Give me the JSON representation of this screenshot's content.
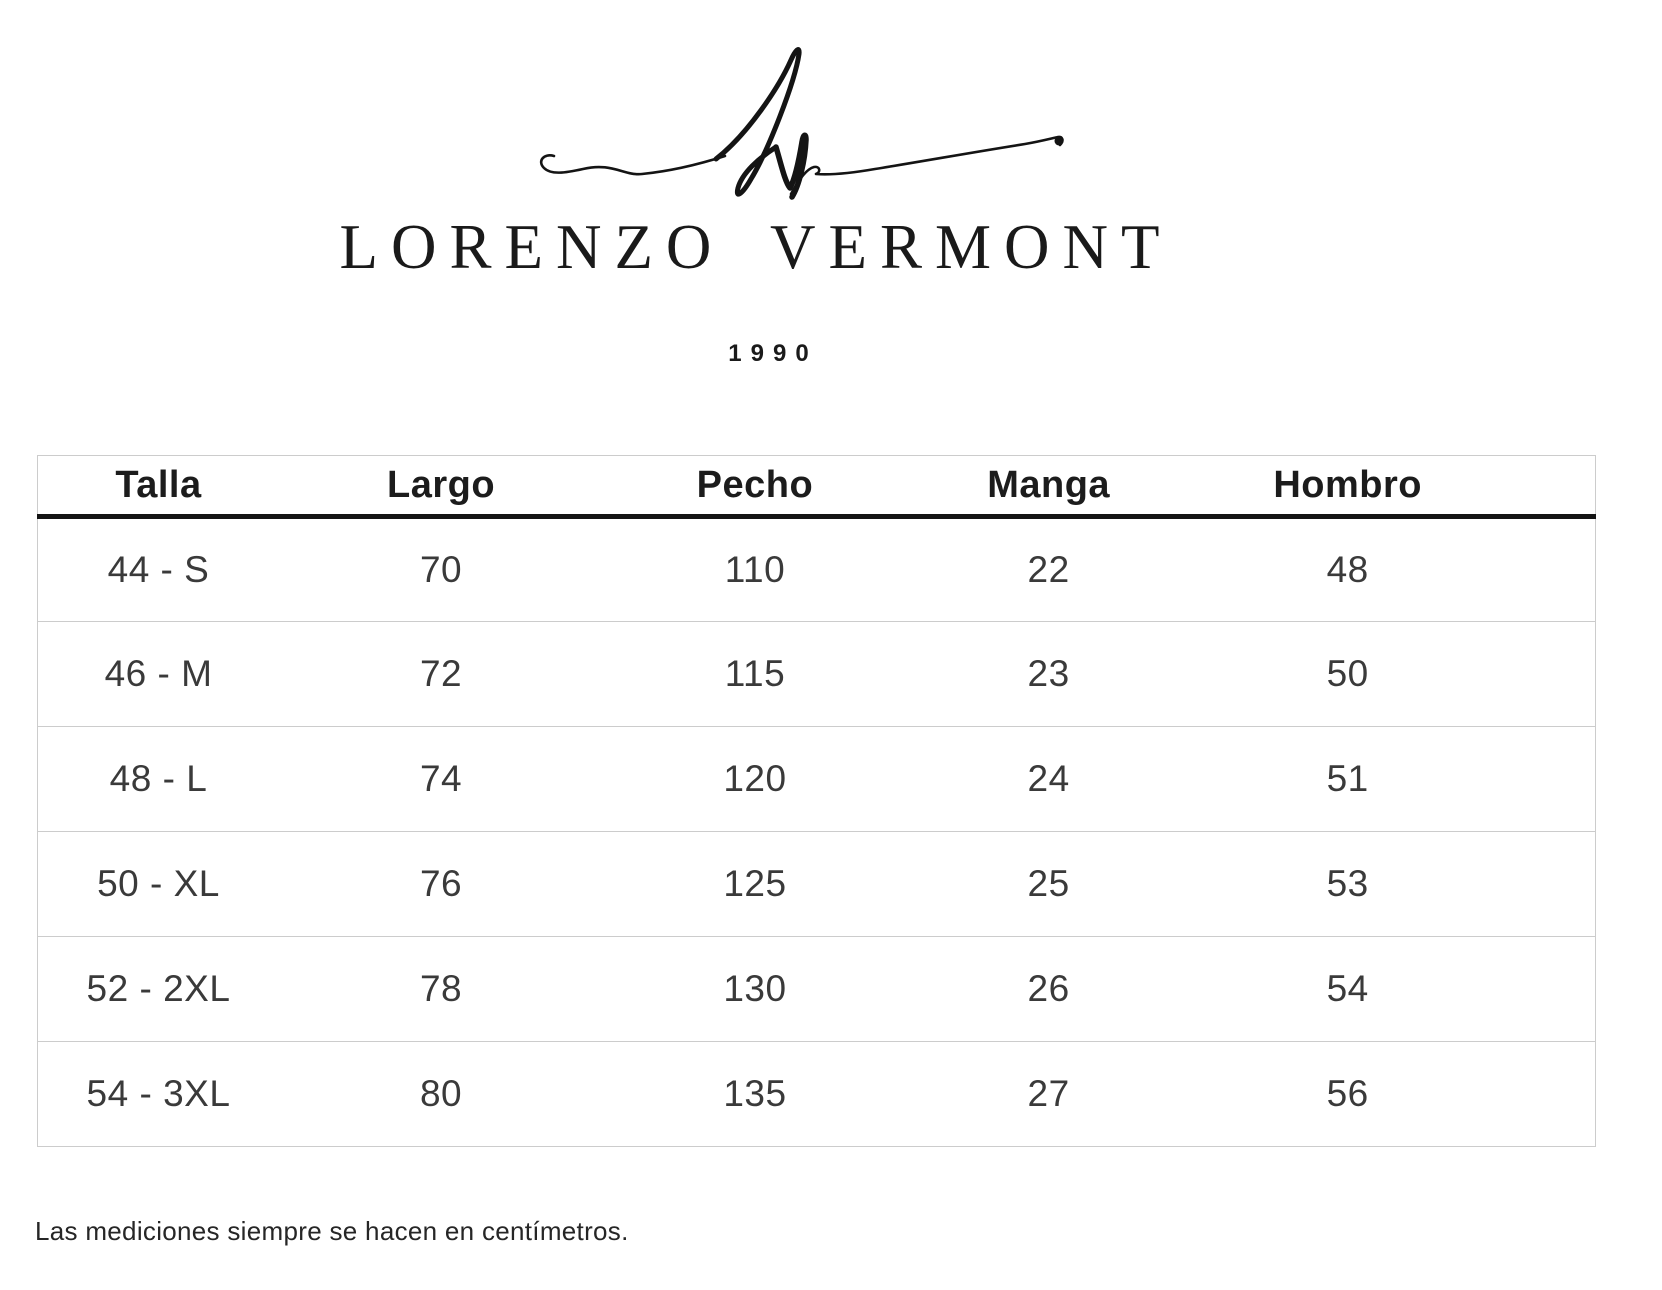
{
  "brand": {
    "monogram_icon": "lv-script-monogram-icon",
    "name": "LORENZO VERMONT",
    "year": "1990"
  },
  "table": {
    "columns": [
      "Talla",
      "Largo",
      "Pecho",
      "Manga",
      "Hombro"
    ],
    "rows": [
      [
        "44 - S",
        "70",
        "110",
        "22",
        "48"
      ],
      [
        "46 - M",
        "72",
        "115",
        "23",
        "50"
      ],
      [
        "48 - L",
        "74",
        "120",
        "24",
        "51"
      ],
      [
        "50 - XL",
        "76",
        "125",
        "25",
        "53"
      ],
      [
        "52 - 2XL",
        "78",
        "130",
        "26",
        "54"
      ],
      [
        "54 - 3XL",
        "80",
        "135",
        "27",
        "56"
      ]
    ]
  },
  "footnote": "Las mediciones siempre se hacen en centímetros.",
  "colors": {
    "title-text": "#1a1a1a",
    "header-text": "#1c1c1c",
    "body-text": "#3a3a3a",
    "border": "#cccccc",
    "header-rule": "#141414"
  }
}
